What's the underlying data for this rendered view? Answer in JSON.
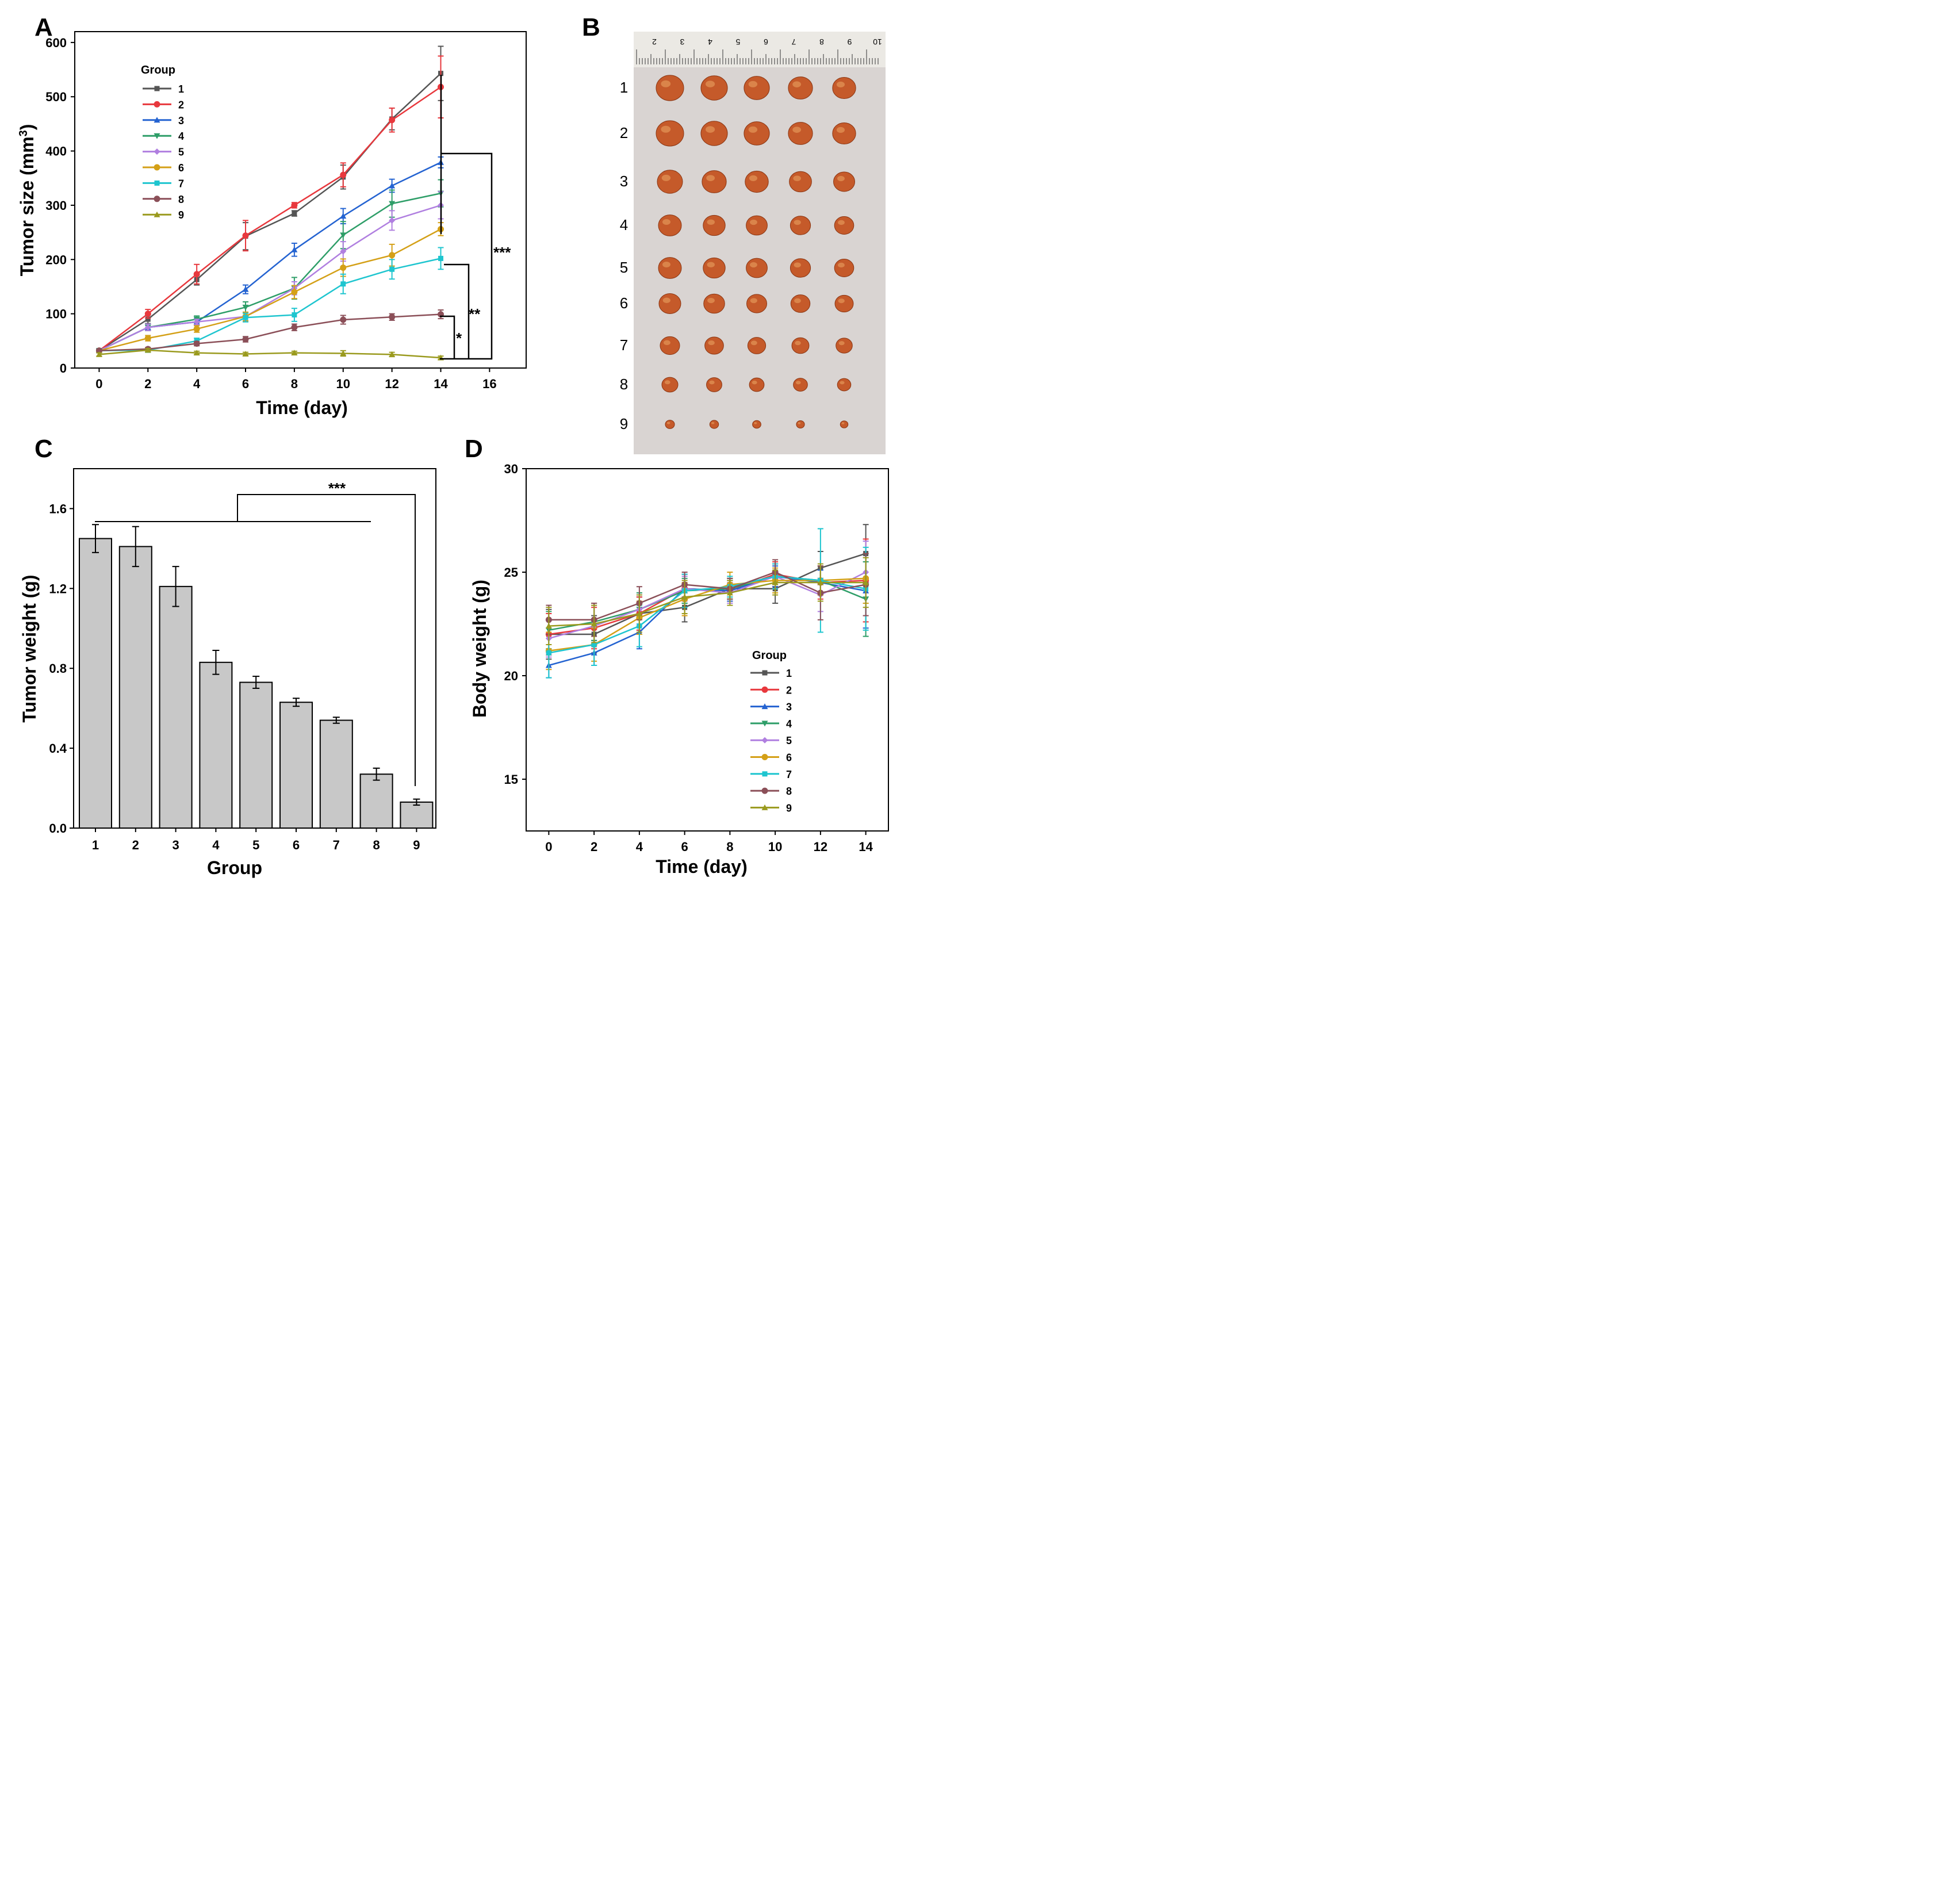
{
  "panels": {
    "A": {
      "label": "A"
    },
    "B": {
      "label": "B",
      "rows": [
        "1",
        "2",
        "3",
        "4",
        "5",
        "6",
        "7",
        "8",
        "9"
      ],
      "ruler_numbers": [
        "2",
        "3",
        "4",
        "5",
        "6",
        "7",
        "8",
        "9",
        "10"
      ]
    },
    "C": {
      "label": "C"
    },
    "D": {
      "label": "D"
    }
  },
  "legend": {
    "title": "Group"
  },
  "colors": {
    "series": [
      "#555555",
      "#e8383d",
      "#2463d1",
      "#2e9e68",
      "#b07fe0",
      "#d4a017",
      "#1ec5cf",
      "#8b4f58",
      "#9a9a1e"
    ],
    "bar_fill": "#c8c8c8",
    "photo_bg": "#d9d4d2",
    "tumor": "#c55a2a"
  },
  "chart_data": [
    {
      "panel": "A",
      "type": "line",
      "title": "",
      "xlabel": "Time (day)",
      "ylabel": "Tumor size (mm3)",
      "ylabel_main": "Tumor size (mm",
      "ylabel_sup": "3",
      "ylabel_close": ")",
      "x": [
        0,
        2,
        4,
        6,
        8,
        10,
        12,
        14
      ],
      "xlim": [
        -1,
        17.5
      ],
      "ylim": [
        0,
        620
      ],
      "xticks": [
        0,
        2,
        4,
        6,
        8,
        10,
        12,
        14,
        16
      ],
      "yticks": [
        0,
        100,
        200,
        300,
        400,
        500,
        600
      ],
      "series": [
        {
          "name": "1",
          "values": [
            32,
            90,
            163,
            243,
            285,
            352,
            459,
            543
          ],
          "errors": [
            3,
            8,
            10,
            25,
            5,
            22,
            20,
            50
          ]
        },
        {
          "name": "2",
          "values": [
            32,
            100,
            173,
            244,
            300,
            356,
            457,
            518
          ],
          "errors": [
            3,
            8,
            18,
            28,
            5,
            22,
            22,
            57
          ]
        },
        {
          "name": "3",
          "values": [
            32,
            75,
            85,
            145,
            218,
            280,
            336,
            379
          ],
          "errors": [
            3,
            6,
            6,
            8,
            12,
            14,
            12,
            10
          ]
        },
        {
          "name": "4",
          "values": [
            32,
            75,
            90,
            112,
            147,
            245,
            303,
            322
          ],
          "errors": [
            3,
            6,
            6,
            10,
            20,
            25,
            25,
            25
          ]
        },
        {
          "name": "5",
          "values": [
            32,
            75,
            85,
            95,
            147,
            215,
            272,
            300
          ],
          "errors": [
            3,
            6,
            5,
            8,
            12,
            18,
            18,
            25
          ]
        },
        {
          "name": "6",
          "values": [
            32,
            55,
            72,
            95,
            140,
            185,
            208,
            256
          ],
          "errors": [
            3,
            5,
            6,
            8,
            12,
            16,
            20,
            12
          ]
        },
        {
          "name": "7",
          "values": [
            32,
            33,
            50,
            93,
            98,
            155,
            182,
            202
          ],
          "errors": [
            3,
            4,
            5,
            8,
            12,
            18,
            18,
            20
          ]
        },
        {
          "name": "8",
          "values": [
            32,
            35,
            45,
            53,
            75,
            89,
            94,
            99
          ],
          "errors": [
            3,
            3,
            4,
            5,
            6,
            8,
            6,
            8
          ]
        },
        {
          "name": "9",
          "values": [
            25,
            33,
            28,
            26,
            28,
            27,
            25,
            19
          ],
          "errors": [
            3,
            3,
            3,
            3,
            3,
            5,
            4,
            3
          ]
        }
      ],
      "significance": [
        "***",
        "**",
        "*"
      ]
    },
    {
      "panel": "C",
      "type": "bar",
      "title": "",
      "xlabel": "Group",
      "ylabel": "Tumor weight (g)",
      "categories": [
        "1",
        "2",
        "3",
        "4",
        "5",
        "6",
        "7",
        "8",
        "9"
      ],
      "values": [
        1.45,
        1.41,
        1.21,
        0.83,
        0.73,
        0.63,
        0.54,
        0.27,
        0.13
      ],
      "errors": [
        0.07,
        0.1,
        0.1,
        0.06,
        0.03,
        0.02,
        0.015,
        0.03,
        0.015
      ],
      "ylim": [
        0,
        1.8
      ],
      "yticks": [
        "0.0",
        "0.4",
        "0.8",
        "1.2",
        "1.6"
      ],
      "significance": "***"
    },
    {
      "panel": "D",
      "type": "line",
      "title": "",
      "xlabel": "Time (day)",
      "ylabel": "Body weight (g)",
      "x": [
        0,
        2,
        4,
        6,
        8,
        10,
        12,
        14
      ],
      "xlim": [
        -1,
        15
      ],
      "ylim": [
        12.5,
        30
      ],
      "xticks": [
        0,
        2,
        4,
        6,
        8,
        10,
        12,
        14
      ],
      "yticks": [
        15,
        20,
        25,
        30
      ],
      "series": [
        {
          "name": "1",
          "values": [
            22.0,
            22.0,
            23.0,
            23.3,
            24.2,
            24.2,
            25.2,
            25.9
          ],
          "errors": [
            1.2,
            0.9,
            0.8,
            0.7,
            0.5,
            0.7,
            0.8,
            1.4
          ]
        },
        {
          "name": "2",
          "values": [
            22.0,
            22.3,
            23.0,
            24.2,
            24.1,
            24.9,
            24.5,
            24.6
          ],
          "errors": [
            1.0,
            1.0,
            0.8,
            0.7,
            0.5,
            0.6,
            0.8,
            2.0
          ]
        },
        {
          "name": "3",
          "values": [
            20.5,
            21.1,
            22.1,
            24.2,
            24.1,
            24.8,
            24.5,
            24.1
          ],
          "errors": [
            0.6,
            0.6,
            0.8,
            0.7,
            0.5,
            0.5,
            0.6,
            1.8
          ]
        },
        {
          "name": "4",
          "values": [
            22.2,
            22.6,
            23.2,
            24.1,
            24.2,
            24.8,
            24.6,
            23.7
          ],
          "errors": [
            0.9,
            0.9,
            0.8,
            0.6,
            0.5,
            0.6,
            0.7,
            1.8
          ]
        },
        {
          "name": "5",
          "values": [
            21.8,
            22.4,
            23.2,
            24.2,
            24.0,
            24.8,
            23.9,
            25.0
          ],
          "errors": [
            0.9,
            1.0,
            0.7,
            0.6,
            0.5,
            0.6,
            0.8,
            1.5
          ]
        },
        {
          "name": "6",
          "values": [
            21.2,
            21.5,
            22.8,
            23.7,
            24.4,
            24.6,
            24.6,
            24.7
          ],
          "errors": [
            0.9,
            0.8,
            0.8,
            0.8,
            0.6,
            0.6,
            0.7,
            1.2
          ]
        },
        {
          "name": "7",
          "values": [
            21.1,
            21.5,
            22.4,
            24.1,
            24.3,
            24.8,
            24.6,
            24.2
          ],
          "errors": [
            1.2,
            1.0,
            1.0,
            0.8,
            0.5,
            0.6,
            2.5,
            2.0
          ]
        },
        {
          "name": "8",
          "values": [
            22.7,
            22.7,
            23.5,
            24.4,
            24.2,
            25.0,
            24.0,
            24.4
          ],
          "errors": [
            0.7,
            0.8,
            0.8,
            0.6,
            0.5,
            0.6,
            1.3,
            1.5
          ]
        },
        {
          "name": "9",
          "values": [
            22.4,
            22.5,
            23.0,
            23.8,
            24.0,
            24.5,
            24.5,
            24.5
          ],
          "errors": [
            0.9,
            0.9,
            0.9,
            0.8,
            0.6,
            0.6,
            0.9,
            1.2
          ]
        }
      ]
    }
  ]
}
